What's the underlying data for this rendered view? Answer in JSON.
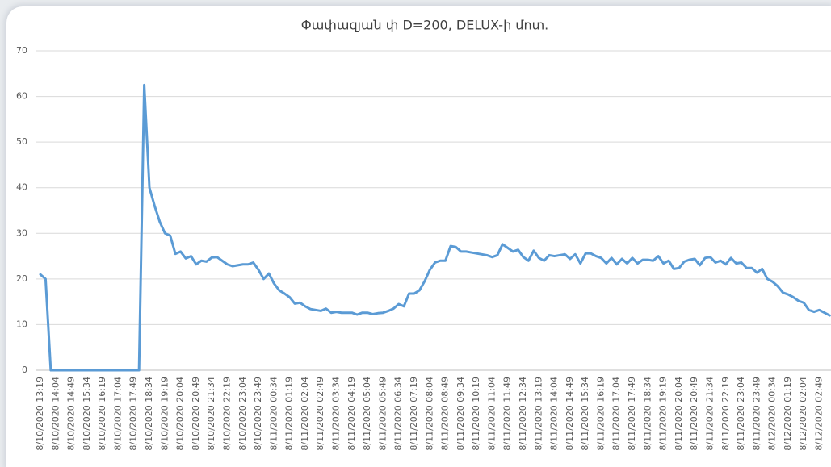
{
  "chart_data": {
    "type": "line",
    "title": "Փափազյան փ D=200, DELUX-ի մոտ.",
    "categories": [
      "8/10/2020 13:19",
      null,
      null,
      "8/10/2020 14:04",
      null,
      null,
      "8/10/2020 14:49",
      null,
      null,
      "8/10/2020 15:34",
      null,
      null,
      "8/10/2020 16:19",
      null,
      null,
      "8/10/2020 17:04",
      null,
      null,
      "8/10/2020 17:49",
      null,
      null,
      "8/10/2020 18:34",
      null,
      null,
      "8/10/2020 19:19",
      null,
      null,
      "8/10/2020 20:04",
      null,
      null,
      "8/10/2020 20:49",
      null,
      null,
      "8/10/2020 21:34",
      null,
      null,
      "8/10/2020 22:19",
      null,
      null,
      "8/10/2020 23:04",
      null,
      null,
      "8/10/2020 23:49",
      null,
      null,
      "8/11/2020 00:34",
      null,
      null,
      "8/11/2020 01:19",
      null,
      null,
      "8/11/2020 02:04",
      null,
      null,
      "8/11/2020 02:49",
      null,
      null,
      "8/11/2020 03:34",
      null,
      null,
      "8/11/2020 04:19",
      null,
      null,
      "8/11/2020 05:04",
      null,
      null,
      "8/11/2020 05:49",
      null,
      null,
      "8/11/2020 06:34",
      null,
      null,
      "8/11/2020 07:19",
      null,
      null,
      "8/11/2020 08:04",
      null,
      null,
      "8/11/2020 08:49",
      null,
      null,
      "8/11/2020 09:34",
      null,
      null,
      "8/11/2020 10:19",
      null,
      null,
      "8/11/2020 11:04",
      null,
      null,
      "8/11/2020 11:49",
      null,
      null,
      "8/11/2020 12:34",
      null,
      null,
      "8/11/2020 13:19",
      null,
      null,
      "8/11/2020 14:04",
      null,
      null,
      "8/11/2020 14:49",
      null,
      null,
      "8/11/2020 15:34",
      null,
      null,
      "8/11/2020 16:19",
      null,
      null,
      "8/11/2020 17:04",
      null,
      null,
      "8/11/2020 17:49",
      null,
      null,
      "8/11/2020 18:34",
      null,
      null,
      "8/11/2020 19:19",
      null,
      null,
      "8/11/2020 20:04",
      null,
      null,
      "8/11/2020 20:49",
      null,
      null,
      "8/11/2020 21:34",
      null,
      null,
      "8/11/2020 22:19",
      null,
      null,
      "8/11/2020 23:04",
      null,
      null,
      "8/11/2020 23:49",
      null,
      null,
      "8/12/2020 00:34",
      null,
      null,
      "8/12/2020 01:19",
      null,
      null,
      "8/12/2020 02:04",
      null,
      null,
      "8/12/2020 02:49",
      null,
      null
    ],
    "values": [
      21,
      20,
      0,
      0,
      0,
      0,
      0,
      0,
      0,
      0,
      0,
      0,
      0,
      0,
      0,
      0,
      0,
      0,
      0,
      0,
      62.5,
      40,
      36,
      32.5,
      30,
      29.5,
      25.5,
      26,
      24.5,
      25,
      23.2,
      24,
      23.8,
      24.7,
      24.8,
      24,
      23.2,
      22.8,
      23,
      23.2,
      23.2,
      23.6,
      22,
      20,
      21.2,
      19,
      17.5,
      16.8,
      16,
      14.6,
      14.8,
      14,
      13.4,
      13.2,
      13,
      13.5,
      12.6,
      12.8,
      12.6,
      12.6,
      12.6,
      12.2,
      12.6,
      12.6,
      12.3,
      12.5,
      12.6,
      13,
      13.5,
      14.5,
      14,
      16.8,
      16.8,
      17.5,
      19.5,
      22,
      23.6,
      24,
      24,
      27.2,
      27,
      26,
      26,
      25.8,
      25.6,
      25.4,
      25.2,
      24.8,
      25.2,
      27.6,
      26.8,
      26,
      26.4,
      24.8,
      24,
      26.2,
      24.6,
      24,
      25.2,
      25,
      25.2,
      25.4,
      24.4,
      25.4,
      23.4,
      25.6,
      25.6,
      25,
      24.6,
      23.4,
      24.6,
      23.2,
      24.4,
      23.4,
      24.6,
      23.4,
      24.2,
      24.2,
      24,
      25,
      23.4,
      24,
      22.2,
      22.4,
      23.8,
      24.2,
      24.4,
      23,
      24.6,
      24.8,
      23.6,
      24,
      23.2,
      24.6,
      23.4,
      23.6,
      22.4,
      22.4,
      21.4,
      22.2,
      20,
      19.4,
      18.4,
      17,
      16.6,
      16,
      15.2,
      14.8,
      13.2,
      12.8,
      13.2,
      12.6,
      12
    ],
    "color": "#5b9bd5",
    "ylim": [
      0,
      70
    ],
    "yticks": [
      0,
      10,
      20,
      30,
      40,
      50,
      60,
      70
    ],
    "grid": true
  }
}
